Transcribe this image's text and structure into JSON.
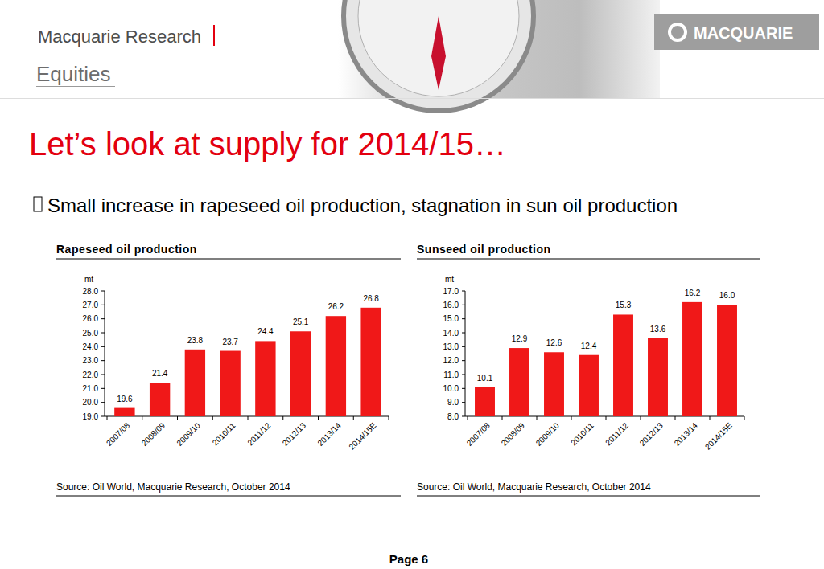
{
  "page": {
    "brand": "Macquarie Research",
    "section": "Equities",
    "logo": "MACQUARIE",
    "title": "Let’s look at supply for 2014/15…",
    "bullet": "Small increase in rapeseed oil production, stagnation in sun oil production",
    "footer": "Page 6"
  },
  "chart_data": [
    {
      "type": "bar",
      "title": "Rapeseed oil production",
      "ylabel": "mt",
      "categories": [
        "2007/08",
        "2008/09",
        "2009/10",
        "2010/11",
        "2011/12",
        "2012/13",
        "2013/14",
        "2014/15E"
      ],
      "values": [
        19.6,
        21.4,
        23.8,
        23.7,
        24.4,
        25.1,
        26.2,
        26.8
      ],
      "value_labels": [
        "19.6",
        "21.4",
        "23.8",
        "23.7",
        "24.4",
        "25.1",
        "26.2",
        "26.8"
      ],
      "color": "#f01818",
      "data_labels": true,
      "grid": false,
      "ylim": [
        19,
        28
      ],
      "yticks": [
        {
          "value": 19,
          "label": "19.0"
        },
        {
          "value": 20,
          "label": "20.0"
        },
        {
          "value": 21,
          "label": "21.0"
        },
        {
          "value": 22,
          "label": "22.0"
        },
        {
          "value": 23,
          "label": "23.0"
        },
        {
          "value": 24,
          "label": "24.0"
        },
        {
          "value": 25,
          "label": "25.0"
        },
        {
          "value": 26,
          "label": "26.0"
        },
        {
          "value": 27,
          "label": "27.0"
        },
        {
          "value": 28,
          "label": "28.0"
        }
      ],
      "source": "Source: Oil World, Macquarie Research, October 2014"
    },
    {
      "type": "bar",
      "title": "Sunseed oil production",
      "ylabel": "mt",
      "categories": [
        "2007/08",
        "2008/09",
        "2009/10",
        "2010/11",
        "2011/12",
        "2012/13",
        "2013/14",
        "2014/15E"
      ],
      "values": [
        10.1,
        12.9,
        12.6,
        12.4,
        15.3,
        13.6,
        16.2,
        16.0
      ],
      "value_labels": [
        "10.1",
        "12.9",
        "12.6",
        "12.4",
        "15.3",
        "13.6",
        "16.2",
        "16.0"
      ],
      "color": "#f01818",
      "data_labels": true,
      "grid": false,
      "ylim": [
        8,
        17
      ],
      "yticks": [
        {
          "value": 8,
          "label": "8.0"
        },
        {
          "value": 9,
          "label": "9.0"
        },
        {
          "value": 10,
          "label": "10.0"
        },
        {
          "value": 11,
          "label": "11.0"
        },
        {
          "value": 12,
          "label": "12.0"
        },
        {
          "value": 13,
          "label": "13.0"
        },
        {
          "value": 14,
          "label": "14.0"
        },
        {
          "value": 15,
          "label": "15.0"
        },
        {
          "value": 16,
          "label": "16.0"
        },
        {
          "value": 17,
          "label": "17.0"
        }
      ],
      "source": "Source: Oil World, Macquarie Research, October 2014"
    }
  ]
}
